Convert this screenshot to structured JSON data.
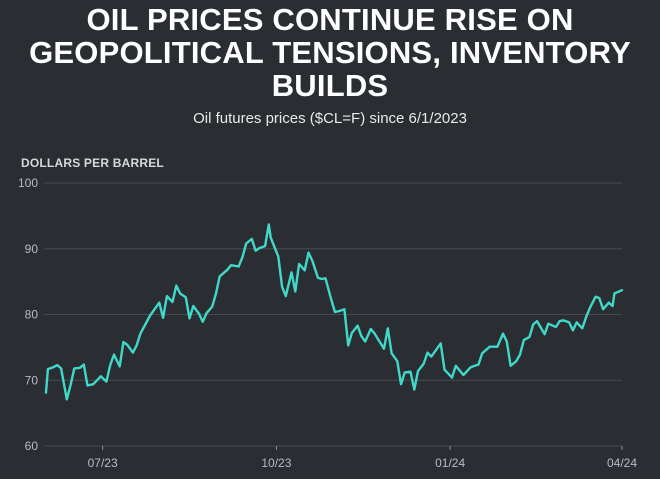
{
  "title": "OIL PRICES CONTINUE RISE ON GEOPOLITICAL TENSIONS, INVENTORY BUILDS",
  "subtitle": "Oil futures prices ($CL=F) since 6/1/2023",
  "colors": {
    "background": "#2a2e33",
    "line": "#40d8c8",
    "grid": "#454a52"
  },
  "chart_data": {
    "type": "line",
    "title": "OIL PRICES CONTINUE RISE ON GEOPOLITICAL TENSIONS, INVENTORY BUILDS",
    "subtitle": "Oil futures prices ($CL=F) since 6/1/2023",
    "ylabel": "DOLLARS PER BARREL",
    "xlabel": "",
    "ylim": [
      60,
      100
    ],
    "yticks": [
      100,
      90,
      80,
      70,
      60
    ],
    "xlim": [
      "2023-06-01",
      "2024-04-01"
    ],
    "xticks": [
      {
        "date": "2023-07-01",
        "label": "07/23"
      },
      {
        "date": "2023-10-01",
        "label": "10/23"
      },
      {
        "date": "2024-01-01",
        "label": "01/24"
      },
      {
        "date": "2024-04-01",
        "label": "04/24"
      }
    ],
    "grid": true,
    "series": [
      {
        "name": "",
        "x": [
          "2023-06-01",
          "2023-06-02",
          "2023-06-05",
          "2023-06-07",
          "2023-06-09",
          "2023-06-12",
          "2023-06-14",
          "2023-06-16",
          "2023-06-19",
          "2023-06-21",
          "2023-06-23",
          "2023-06-26",
          "2023-06-28",
          "2023-06-30",
          "2023-07-03",
          "2023-07-05",
          "2023-07-07",
          "2023-07-10",
          "2023-07-12",
          "2023-07-14",
          "2023-07-17",
          "2023-07-19",
          "2023-07-21",
          "2023-07-24",
          "2023-07-26",
          "2023-07-28",
          "2023-07-31",
          "2023-08-02",
          "2023-08-04",
          "2023-08-07",
          "2023-08-09",
          "2023-08-11",
          "2023-08-14",
          "2023-08-16",
          "2023-08-18",
          "2023-08-21",
          "2023-08-23",
          "2023-08-25",
          "2023-08-28",
          "2023-08-30",
          "2023-09-01",
          "2023-09-05",
          "2023-09-07",
          "2023-09-11",
          "2023-09-13",
          "2023-09-15",
          "2023-09-18",
          "2023-09-20",
          "2023-09-22",
          "2023-09-25",
          "2023-09-27",
          "2023-09-28",
          "2023-10-02",
          "2023-10-04",
          "2023-10-06",
          "2023-10-09",
          "2023-10-11",
          "2023-10-13",
          "2023-10-16",
          "2023-10-18",
          "2023-10-20",
          "2023-10-23",
          "2023-10-25",
          "2023-10-27",
          "2023-10-30",
          "2023-11-01",
          "2023-11-03",
          "2023-11-06",
          "2023-11-08",
          "2023-11-10",
          "2023-11-13",
          "2023-11-15",
          "2023-11-17",
          "2023-11-20",
          "2023-11-22",
          "2023-11-27",
          "2023-11-29",
          "2023-12-01",
          "2023-12-04",
          "2023-12-06",
          "2023-12-08",
          "2023-12-11",
          "2023-12-13",
          "2023-12-15",
          "2023-12-18",
          "2023-12-20",
          "2023-12-22",
          "2023-12-27",
          "2023-12-29",
          "2024-01-02",
          "2024-01-04",
          "2024-01-08",
          "2024-01-10",
          "2024-01-12",
          "2024-01-16",
          "2024-01-18",
          "2024-01-22",
          "2024-01-24",
          "2024-01-26",
          "2024-01-29",
          "2024-01-31",
          "2024-02-02",
          "2024-02-05",
          "2024-02-07",
          "2024-02-09",
          "2024-02-12",
          "2024-02-14",
          "2024-02-16",
          "2024-02-20",
          "2024-02-22",
          "2024-02-26",
          "2024-02-28",
          "2024-03-01",
          "2024-03-04",
          "2024-03-06",
          "2024-03-08",
          "2024-03-11",
          "2024-03-13",
          "2024-03-15",
          "2024-03-18",
          "2024-03-20",
          "2024-03-22",
          "2024-03-25",
          "2024-03-27",
          "2024-03-28",
          "2024-04-01"
        ],
        "values": [
          68.1,
          71.7,
          72.0,
          72.3,
          71.8,
          67.1,
          69.3,
          71.8,
          71.9,
          72.4,
          69.2,
          69.4,
          70.0,
          70.6,
          69.8,
          72.3,
          73.9,
          72.1,
          75.8,
          75.4,
          74.2,
          75.3,
          77.1,
          78.7,
          79.8,
          80.6,
          81.8,
          79.5,
          82.8,
          81.9,
          84.4,
          83.2,
          82.6,
          79.4,
          81.3,
          80.1,
          78.9,
          80.2,
          81.2,
          83.2,
          85.8,
          86.8,
          87.5,
          87.3,
          88.7,
          90.8,
          91.5,
          89.7,
          90.1,
          90.4,
          93.7,
          91.7,
          88.8,
          84.2,
          82.8,
          86.4,
          83.5,
          87.7,
          86.7,
          89.4,
          88.2,
          85.6,
          85.4,
          85.5,
          82.3,
          80.4,
          80.5,
          80.8,
          75.3,
          77.2,
          78.3,
          76.7,
          75.9,
          77.8,
          77.1,
          74.8,
          77.9,
          74.1,
          72.9,
          69.4,
          71.2,
          71.3,
          68.6,
          71.4,
          72.5,
          74.2,
          73.6,
          75.6,
          71.6,
          70.4,
          72.2,
          70.8,
          71.4,
          72.0,
          72.4,
          74.1,
          75.1,
          75.1,
          75.1,
          77.1,
          75.9,
          72.2,
          72.9,
          73.9,
          76.1,
          76.6,
          78.5,
          79.0,
          77.0,
          78.6,
          78.1,
          79.0,
          79.1,
          78.8,
          77.6,
          78.8,
          77.9,
          79.6,
          81.0,
          82.7,
          82.5,
          80.8,
          81.8,
          81.3,
          83.2,
          83.7
        ]
      }
    ]
  }
}
